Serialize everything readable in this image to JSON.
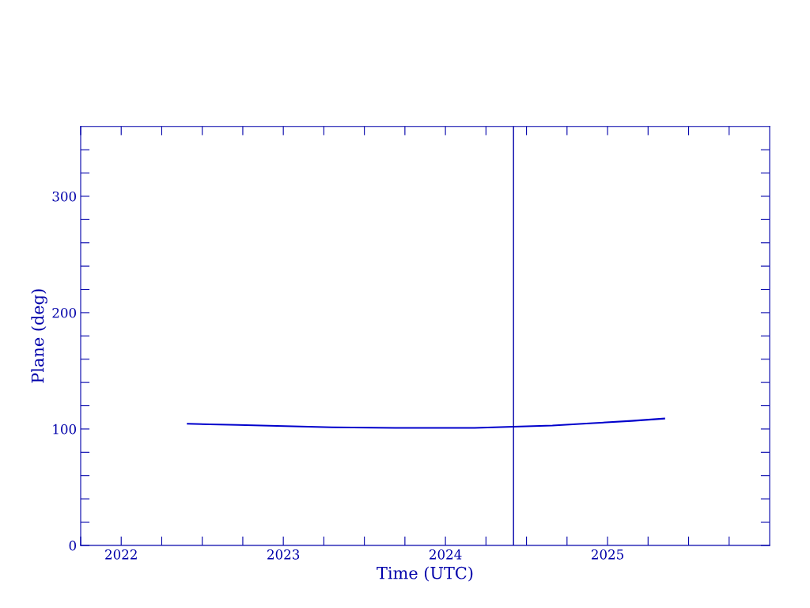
{
  "chart_data": {
    "type": "line",
    "xlabel": "Time (UTC)",
    "ylabel": "Plane (deg)",
    "x": [
      2022.41,
      2022.72,
      2023.01,
      2023.3,
      2023.69,
      2024.18,
      2024.42,
      2024.66,
      2024.91,
      2025.15,
      2025.35
    ],
    "series": [
      {
        "color": "#0000cc",
        "values": [
          104.5,
          103.5,
          102.5,
          101.5,
          101,
          101,
          102,
          103,
          105,
          107,
          109
        ]
      }
    ],
    "xlim": [
      2021.75,
      2026.0
    ],
    "xticks": [
      {
        "value": 2021.75,
        "label": null
      },
      2022,
      {
        "value": 2022.25,
        "label": null
      },
      {
        "value": 2022.5,
        "label": null
      },
      {
        "value": 2022.75,
        "label": null
      },
      2023,
      {
        "value": 2023.25,
        "label": null
      },
      {
        "value": 2023.5,
        "label": null
      },
      {
        "value": 2023.75,
        "label": null
      },
      2024,
      {
        "value": 2024.25,
        "label": null
      },
      {
        "value": 2024.5,
        "label": null
      },
      {
        "value": 2024.75,
        "label": null
      },
      2025,
      {
        "value": 2025.25,
        "label": null
      },
      {
        "value": 2025.5,
        "label": null
      },
      {
        "value": 2025.75,
        "label": null
      }
    ],
    "ylim": [
      0,
      360
    ],
    "yticks": [
      0,
      {
        "value": 20,
        "label": null
      },
      {
        "value": 40,
        "label": null
      },
      {
        "value": 60,
        "label": null
      },
      {
        "value": 80,
        "label": null
      },
      100,
      {
        "value": 120,
        "label": null
      },
      {
        "value": 140,
        "label": null
      },
      {
        "value": 160,
        "label": null
      },
      {
        "value": 180,
        "label": null
      },
      200,
      {
        "value": 220,
        "label": null
      },
      {
        "value": 240,
        "label": null
      },
      {
        "value": 260,
        "label": null
      },
      {
        "value": 280,
        "label": null
      },
      300,
      {
        "value": 320,
        "label": null
      },
      {
        "value": 340,
        "label": null
      }
    ],
    "ref_lines": [
      {
        "axis": "x",
        "value": 2024.42,
        "color": "#0000aa"
      }
    ],
    "grid": false,
    "legend": false,
    "marker": "none",
    "line_style": "solid"
  }
}
